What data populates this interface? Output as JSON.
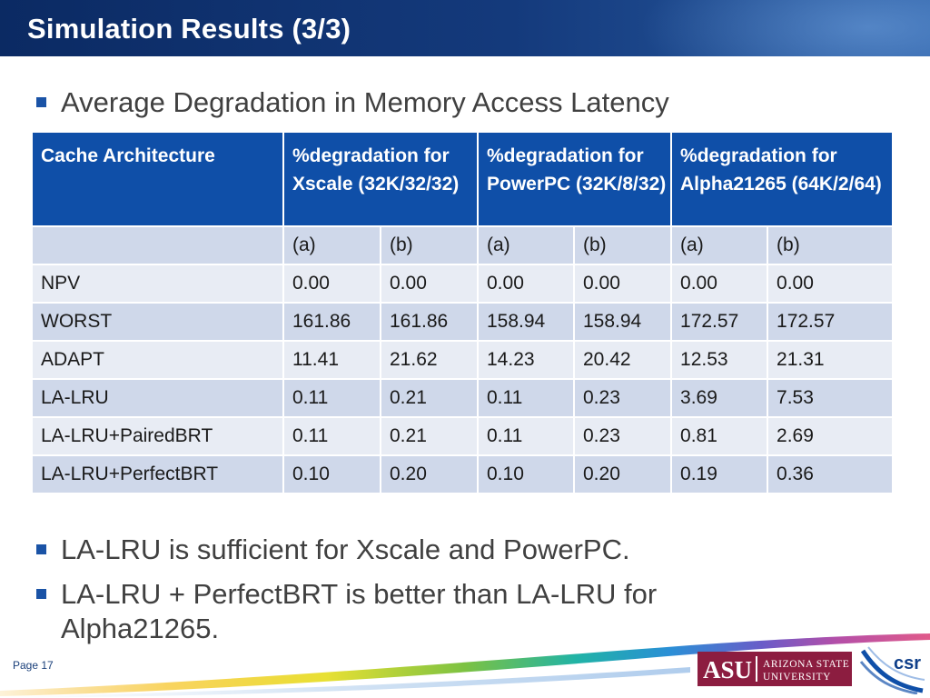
{
  "slide": {
    "title": "Simulation Results (3/3)",
    "bullets": [
      "Average Degradation in Memory Access Latency",
      "LA-LRU is sufficient for Xscale and PowerPC.",
      "LA-LRU + PerfectBRT is better than LA-LRU for Alpha21265."
    ],
    "bullet3_lines": [
      "LA-LRU + PerfectBRT is better than LA-LRU for",
      "Alpha21265."
    ],
    "page": "Page 17"
  },
  "table": {
    "headers": [
      "Cache Architecture",
      "%degradation for Xscale (32K/32/32)",
      "%degradation for PowerPC (32K/8/32)",
      "%degradation for Alpha21265 (64K/2/64)"
    ],
    "subheaders": [
      "",
      "(a)",
      "(b)",
      "(a)",
      "(b)",
      "(a)",
      "(b)"
    ],
    "rows": [
      [
        "NPV",
        "0.00",
        "0.00",
        "0.00",
        "0.00",
        "0.00",
        "0.00"
      ],
      [
        "WORST",
        "161.86",
        "161.86",
        "158.94",
        "158.94",
        "172.57",
        "172.57"
      ],
      [
        "ADAPT",
        "11.41",
        "21.62",
        "14.23",
        "20.42",
        "12.53",
        "21.31"
      ],
      [
        "LA-LRU",
        "0.11",
        "0.21",
        "0.11",
        "0.23",
        "3.69",
        "7.53"
      ],
      [
        "LA-LRU+PairedBRT",
        "0.11",
        "0.21",
        "0.11",
        "0.23",
        "0.81",
        "2.69"
      ],
      [
        "LA-LRU+PerfectBRT",
        "0.10",
        "0.20",
        "0.10",
        "0.20",
        "0.19",
        "0.36"
      ]
    ]
  },
  "logos": {
    "asu_mark": "ASU",
    "asu_name_line1": "ARIZONA STATE",
    "asu_name_line2": "UNIVERSITY",
    "csr_mark": "csr"
  },
  "colors": {
    "title_bar": "#143a7c",
    "header_fill": "#0f4fa8",
    "row_dark": "#cfd8ea",
    "row_light": "#e8ecf4",
    "bullet": "#1a53a6",
    "asu_maroon": "#8c1d40"
  }
}
